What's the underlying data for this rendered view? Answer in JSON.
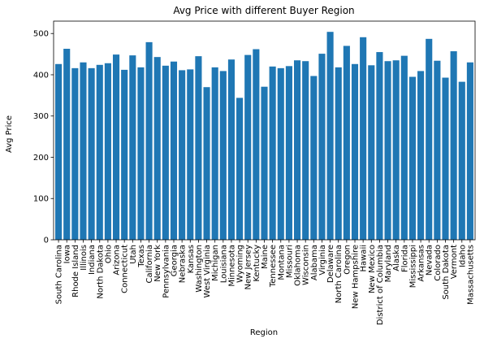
{
  "chart_data": {
    "type": "bar",
    "title": "Avg Price with different Buyer Region",
    "xlabel": "Region",
    "ylabel": "Avg Price",
    "ylim": [
      0,
      530
    ],
    "yticks": [
      0,
      100,
      200,
      300,
      400,
      500
    ],
    "bar_color": "#1f77b4",
    "grid": false,
    "categories": [
      "South Carolina",
      "Iowa",
      "Rhode Island",
      "Illinois",
      "Indiana",
      "North Dakota",
      "Ohio",
      "Arizona",
      "Connecticut",
      "Utah",
      "Texas",
      "California",
      "New York",
      "Pennsylvania",
      "Georgia",
      "Nebraska",
      "Kansas",
      "Washington",
      "West Virginia",
      "Michigan",
      "Louisiana",
      "Minnesota",
      "Wyoming",
      "New Jersey",
      "Kentucky",
      "Maine",
      "Tennessee",
      "Montana",
      "Missouri",
      "Oklahoma",
      "Wisconsin",
      "Alabama",
      "Virginia",
      "Delaware",
      "North Carolina",
      "Oregon",
      "New Hampshire",
      "Hawaii",
      "New Mexico",
      "District of Columbia",
      "Maryland",
      "Alaska",
      "Florida",
      "Mississippi",
      "Arkansas",
      "Nevada",
      "Colorado",
      "South Dakota",
      "Vermont",
      "Idaho",
      "Massachusetts"
    ],
    "values": [
      426,
      463,
      416,
      430,
      416,
      424,
      428,
      449,
      412,
      447,
      418,
      479,
      443,
      422,
      432,
      411,
      413,
      445,
      370,
      418,
      409,
      437,
      344,
      448,
      462,
      371,
      420,
      416,
      421,
      435,
      433,
      397,
      451,
      504,
      418,
      470,
      426,
      491,
      423,
      455,
      433,
      435,
      446,
      395,
      409,
      487,
      434,
      393,
      457,
      383,
      430
    ]
  }
}
